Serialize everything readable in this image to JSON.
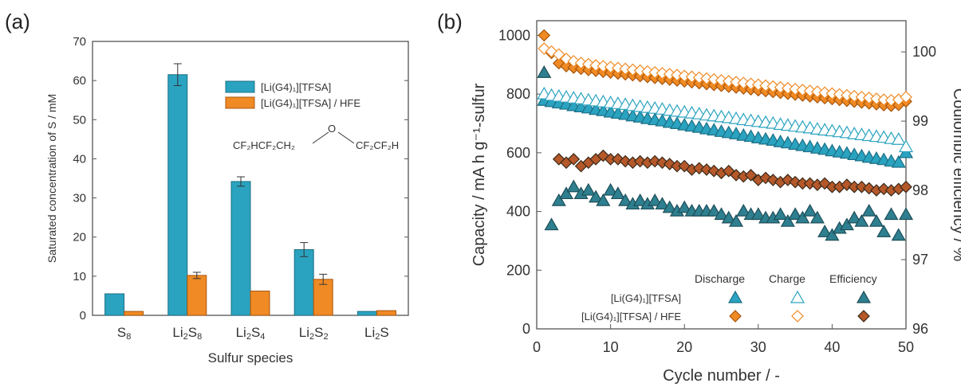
{
  "panel_a_label": "(a)",
  "panel_b_label": "(b)",
  "colors": {
    "tfsa": "#2aa3c0",
    "tfsa_edge": "#1b6f85",
    "hfe": "#f08a24",
    "hfe_edge": "#a8560d",
    "eff_tfsa": "#2e7f8f",
    "eff_hfe": "#b5582a",
    "axis": "#555555"
  },
  "chart_data": [
    {
      "id": "a",
      "type": "bar",
      "categories": [
        "S8",
        "Li2S8",
        "Li2S4",
        "Li2S2",
        "Li2S"
      ],
      "category_labels": [
        {
          "base": "S",
          "sub": "8",
          "tail": ""
        },
        {
          "base": "Li",
          "sub": "2",
          "tail": "S",
          "sub2": "8"
        },
        {
          "base": "Li",
          "sub": "2",
          "tail": "S",
          "sub2": "4"
        },
        {
          "base": "Li",
          "sub": "2",
          "tail": "S",
          "sub2": "2"
        },
        {
          "base": "Li",
          "sub": "2",
          "tail": "S",
          "sub2": ""
        }
      ],
      "series": [
        {
          "name": "[Li(G4)1][TFSA]",
          "values": [
            5.5,
            61.5,
            34.2,
            16.8,
            1.0
          ],
          "errors": [
            0,
            2.8,
            1.2,
            1.8,
            0
          ]
        },
        {
          "name": "[Li(G4)1][TFSA] / HFE",
          "values": [
            1.0,
            10.2,
            6.2,
            9.2,
            1.2
          ],
          "errors": [
            0,
            0.8,
            0,
            1.3,
            0
          ]
        }
      ],
      "legend_labels": [
        "[Li(G4)₁][TFSA]",
        "[Li(G4)₁][TFSA] / HFE"
      ],
      "annotation": {
        "formula_left": "CF₂HCF₂CH₂",
        "formula_o": "O",
        "formula_right": "CF₂CF₂H"
      },
      "xlabel": "Sulfur species",
      "ylabel": "Saturated concentration of S / mM",
      "ylim": [
        0,
        70
      ],
      "yticks": [
        0,
        10,
        20,
        30,
        40,
        50,
        60,
        70
      ]
    },
    {
      "id": "b",
      "type": "scatter",
      "xlabel": "Cycle number / -",
      "ylabel": "Capacity / mA h g⁻¹-sulfur",
      "y2label": "Coulombic efficiency / %",
      "xlim": [
        0,
        50
      ],
      "ylim": [
        0,
        1050
      ],
      "y2lim": [
        96,
        100.45
      ],
      "xticks": [
        0,
        10,
        20,
        30,
        40,
        50
      ],
      "yticks": [
        0,
        200,
        400,
        600,
        800,
        1000
      ],
      "y2ticks": [
        96,
        97,
        98,
        99,
        100
      ],
      "legend_columns": [
        "Discharge",
        "Charge",
        "Efficiency"
      ],
      "legend_rows": [
        "[Li(G4)₁][TFSA]",
        "[Li(G4)₁][TFSA] / HFE"
      ],
      "series": [
        {
          "name": "[Li(G4)1][TFSA] Discharge",
          "axis": "left",
          "marker": "triangle-filled",
          "x": [
            1,
            2,
            3,
            4,
            5,
            6,
            7,
            8,
            9,
            10,
            11,
            12,
            13,
            14,
            15,
            16,
            17,
            18,
            19,
            20,
            21,
            22,
            23,
            24,
            25,
            26,
            27,
            28,
            29,
            30,
            31,
            32,
            33,
            34,
            35,
            36,
            37,
            38,
            39,
            40,
            41,
            42,
            43,
            44,
            45,
            46,
            47,
            48,
            49,
            50
          ],
          "y": [
            778,
            774,
            769,
            765,
            760,
            756,
            752,
            747,
            743,
            738,
            734,
            730,
            725,
            721,
            716,
            712,
            708,
            703,
            699,
            694,
            690,
            686,
            681,
            677,
            672,
            668,
            664,
            659,
            655,
            650,
            646,
            642,
            637,
            633,
            628,
            624,
            620,
            615,
            611,
            606,
            602,
            598,
            593,
            589,
            584,
            580,
            576,
            571,
            567,
            600
          ]
        },
        {
          "name": "[Li(G4)1][TFSA] Charge",
          "axis": "left",
          "marker": "triangle-open",
          "x": [
            1,
            2,
            3,
            4,
            5,
            6,
            7,
            8,
            9,
            10,
            11,
            12,
            13,
            14,
            15,
            16,
            17,
            18,
            19,
            20,
            21,
            22,
            23,
            24,
            25,
            26,
            27,
            28,
            29,
            30,
            31,
            32,
            33,
            34,
            35,
            36,
            37,
            38,
            39,
            40,
            41,
            42,
            43,
            44,
            45,
            46,
            47,
            48,
            49,
            50
          ],
          "y": [
            800,
            795,
            792,
            789,
            786,
            783,
            779,
            776,
            773,
            770,
            767,
            764,
            760,
            757,
            754,
            751,
            748,
            744,
            741,
            738,
            735,
            732,
            728,
            725,
            722,
            719,
            716,
            712,
            709,
            706,
            703,
            700,
            696,
            693,
            690,
            687,
            684,
            680,
            677,
            674,
            671,
            668,
            664,
            661,
            658,
            655,
            652,
            648,
            645,
            620
          ]
        },
        {
          "name": "[Li(G4)1][TFSA] / HFE Discharge",
          "axis": "left",
          "marker": "diamond-filled",
          "x": [
            1,
            2,
            3,
            4,
            5,
            6,
            7,
            8,
            9,
            10,
            11,
            12,
            13,
            14,
            15,
            16,
            17,
            18,
            19,
            20,
            21,
            22,
            23,
            24,
            25,
            26,
            27,
            28,
            29,
            30,
            31,
            32,
            33,
            34,
            35,
            36,
            37,
            38,
            39,
            40,
            41,
            42,
            43,
            44,
            45,
            46,
            47,
            48,
            49,
            50
          ],
          "y": [
            1000,
            940,
            905,
            895,
            890,
            886,
            882,
            879,
            876,
            873,
            870,
            867,
            864,
            861,
            858,
            855,
            852,
            849,
            846,
            843,
            840,
            837,
            834,
            831,
            828,
            825,
            822,
            819,
            816,
            813,
            810,
            807,
            804,
            801,
            798,
            795,
            792,
            789,
            786,
            783,
            780,
            777,
            774,
            771,
            768,
            765,
            762,
            760,
            763,
            775
          ]
        },
        {
          "name": "[Li(G4)1][TFSA] / HFE Charge",
          "axis": "left",
          "marker": "diamond-open",
          "x": [
            1,
            2,
            3,
            4,
            5,
            6,
            7,
            8,
            9,
            10,
            11,
            12,
            13,
            14,
            15,
            16,
            17,
            18,
            19,
            20,
            21,
            22,
            23,
            24,
            25,
            26,
            27,
            28,
            29,
            30,
            31,
            32,
            33,
            34,
            35,
            36,
            37,
            38,
            39,
            40,
            41,
            42,
            43,
            44,
            45,
            46,
            47,
            48,
            49,
            50
          ],
          "y": [
            955,
            945,
            935,
            920,
            912,
            906,
            902,
            898,
            895,
            892,
            889,
            886,
            883,
            880,
            877,
            874,
            871,
            868,
            865,
            862,
            859,
            856,
            853,
            850,
            847,
            844,
            841,
            838,
            835,
            832,
            829,
            826,
            823,
            820,
            817,
            814,
            811,
            808,
            805,
            802,
            799,
            796,
            793,
            790,
            787,
            784,
            781,
            779,
            781,
            790
          ]
        },
        {
          "name": "[Li(G4)1][TFSA] Efficiency",
          "axis": "right",
          "marker": "triangle-filled",
          "x": [
            1,
            2,
            3,
            4,
            5,
            6,
            7,
            8,
            9,
            10,
            11,
            12,
            13,
            14,
            15,
            16,
            17,
            18,
            19,
            20,
            21,
            22,
            23,
            24,
            25,
            26,
            27,
            28,
            29,
            30,
            31,
            32,
            33,
            34,
            35,
            36,
            37,
            38,
            39,
            40,
            41,
            42,
            43,
            44,
            45,
            46,
            47,
            48,
            49,
            50
          ],
          "y": [
            99.7,
            97.5,
            97.85,
            97.95,
            98.05,
            97.95,
            98.0,
            97.9,
            97.85,
            98.0,
            97.95,
            97.85,
            97.8,
            97.85,
            97.8,
            97.85,
            97.8,
            97.75,
            97.7,
            97.75,
            97.7,
            97.7,
            97.7,
            97.7,
            97.65,
            97.6,
            97.55,
            97.7,
            97.65,
            97.65,
            97.6,
            97.6,
            97.65,
            97.55,
            97.65,
            97.6,
            97.7,
            97.6,
            97.4,
            97.35,
            97.45,
            97.5,
            97.6,
            97.55,
            97.7,
            97.55,
            97.4,
            97.65,
            97.35,
            97.65
          ]
        },
        {
          "name": "[Li(G4)1][TFSA] / HFE Efficiency",
          "axis": "right",
          "marker": "diamond-filled",
          "x": [
            3,
            4,
            5,
            6,
            7,
            8,
            9,
            10,
            11,
            12,
            13,
            14,
            15,
            16,
            17,
            18,
            19,
            20,
            21,
            22,
            23,
            24,
            25,
            26,
            27,
            28,
            29,
            30,
            31,
            32,
            33,
            34,
            35,
            36,
            37,
            38,
            39,
            40,
            41,
            42,
            43,
            44,
            45,
            46,
            47,
            48,
            49,
            50
          ],
          "y": [
            98.45,
            98.4,
            98.45,
            98.35,
            98.4,
            98.45,
            98.5,
            98.45,
            98.45,
            98.42,
            98.4,
            98.42,
            98.4,
            98.42,
            98.4,
            98.38,
            98.35,
            98.35,
            98.3,
            98.32,
            98.3,
            98.28,
            98.25,
            98.28,
            98.22,
            98.2,
            98.22,
            98.15,
            98.18,
            98.15,
            98.12,
            98.15,
            98.12,
            98.1,
            98.1,
            98.08,
            98.1,
            98.05,
            98.05,
            98.08,
            98.05,
            98.05,
            98.03,
            98.0,
            98.02,
            98.0,
            98.02,
            98.05
          ]
        }
      ]
    }
  ]
}
